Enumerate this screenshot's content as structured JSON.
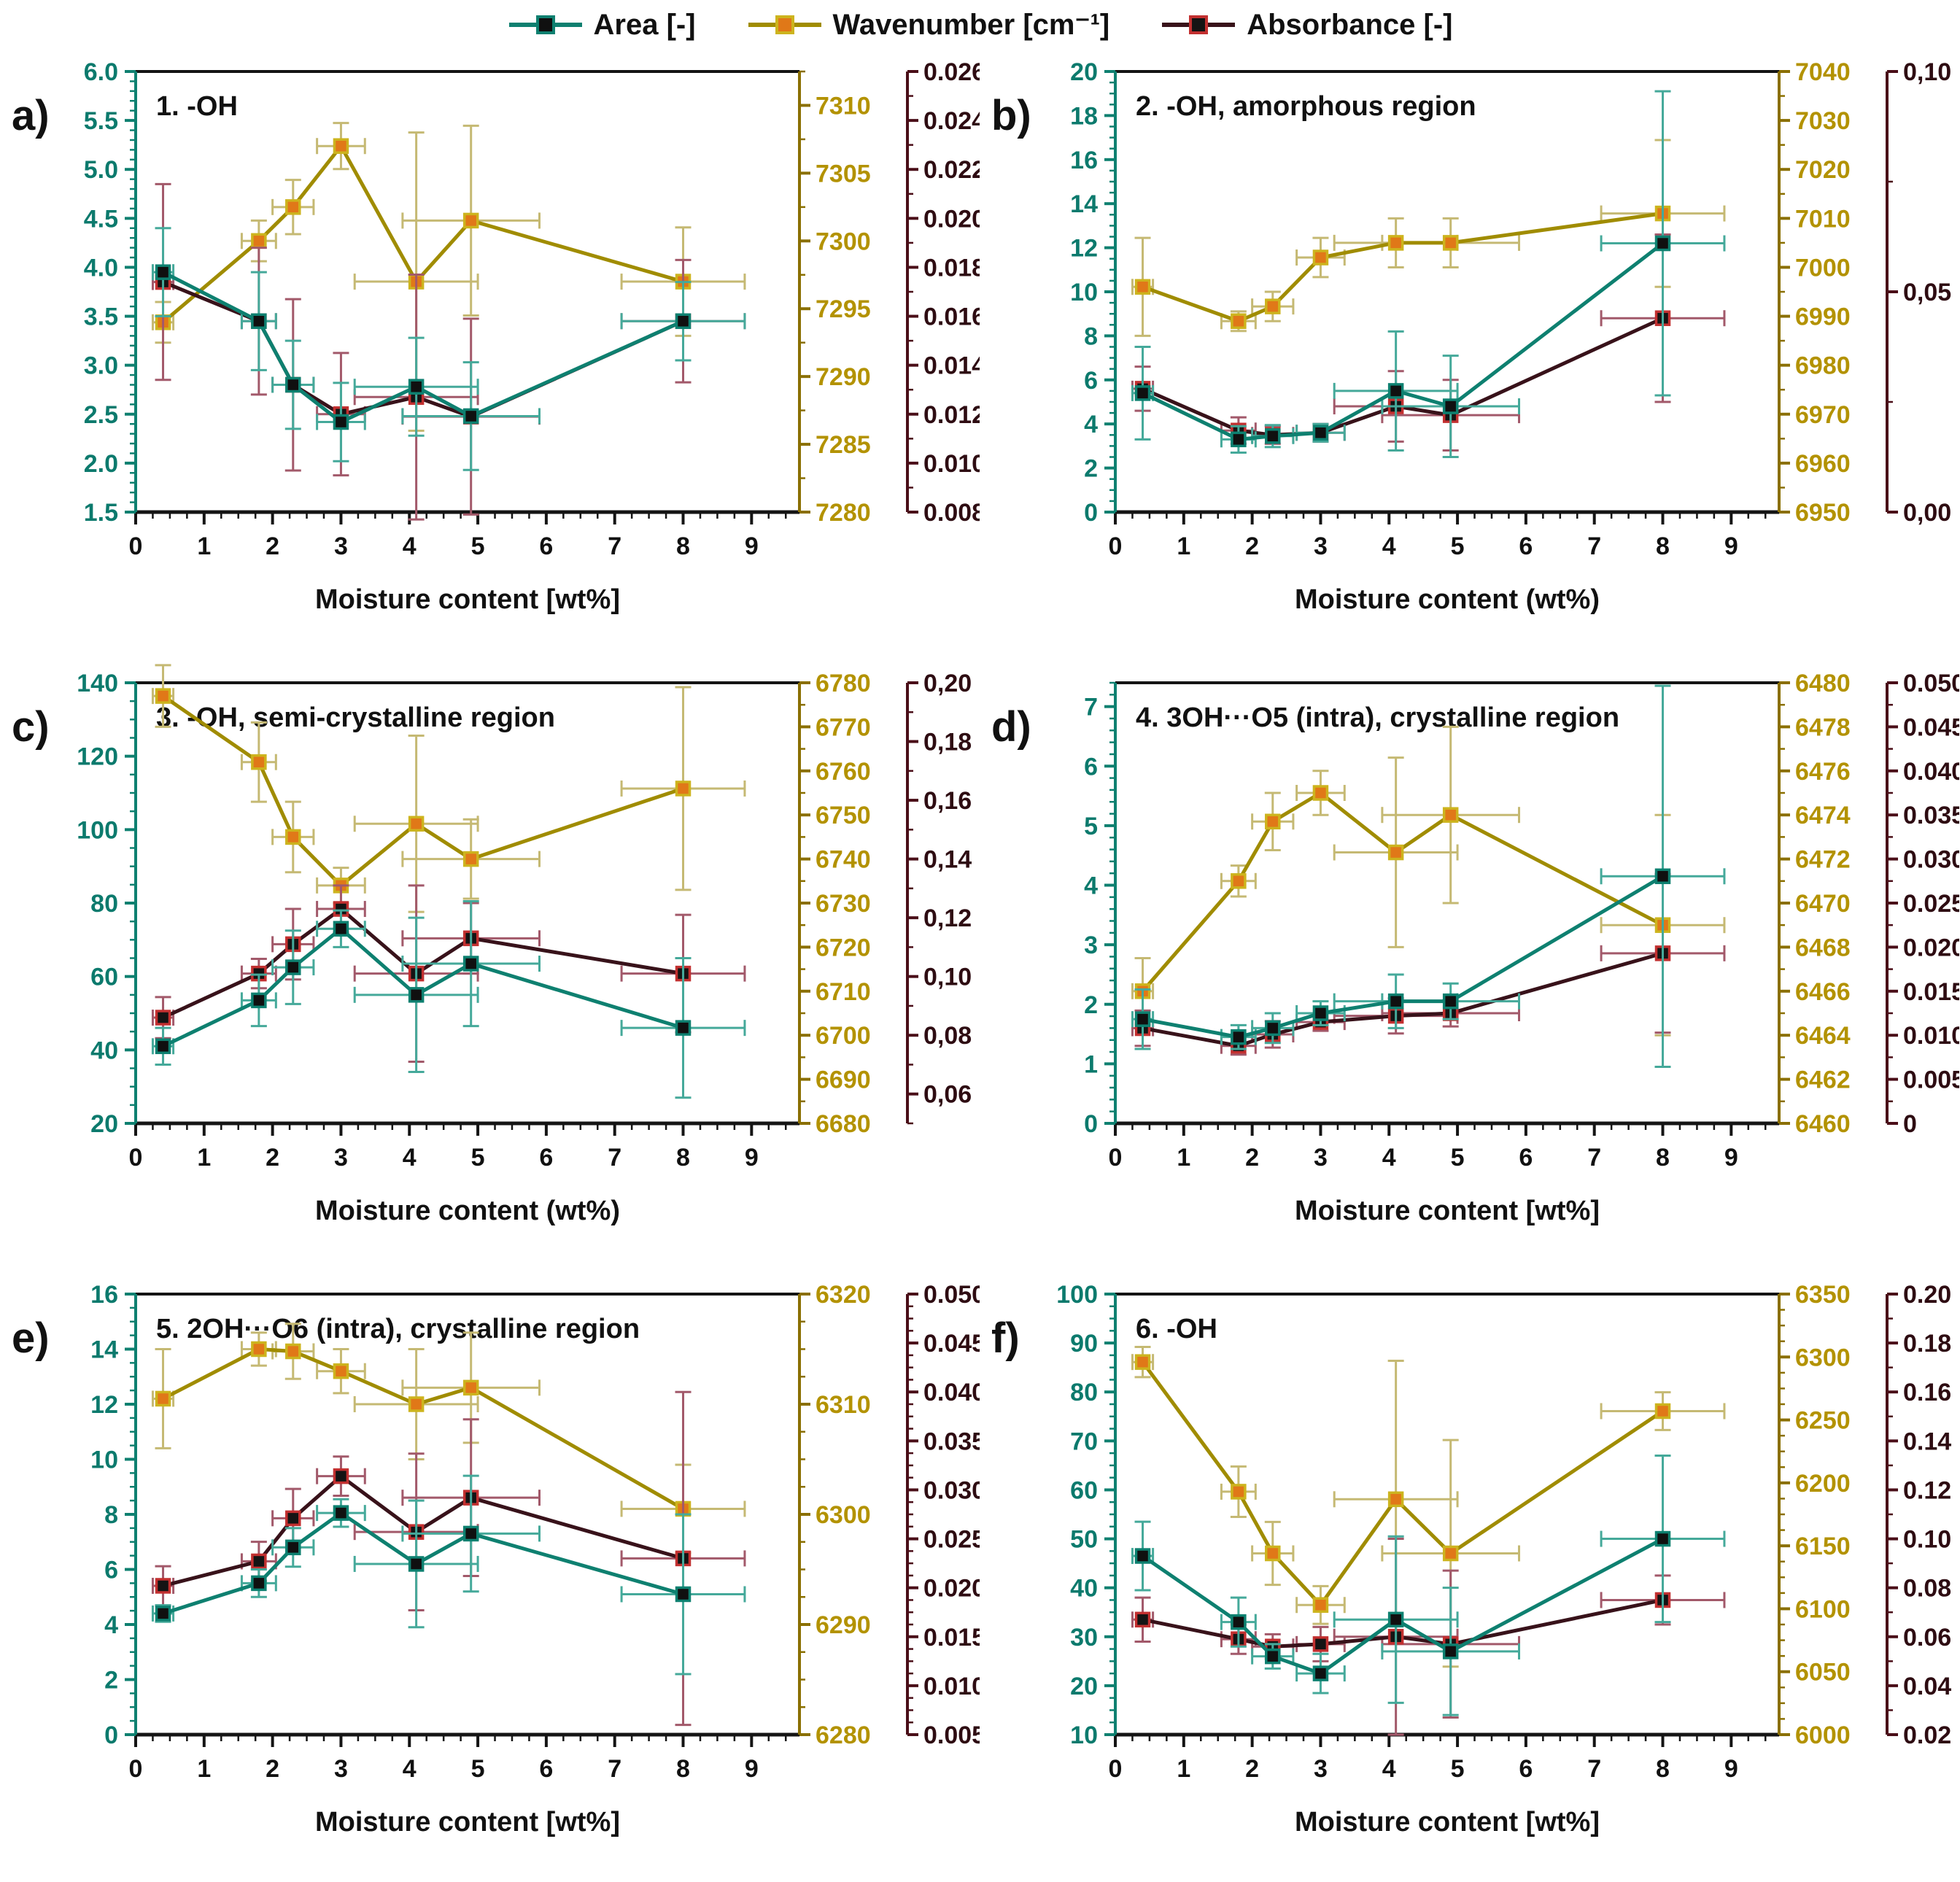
{
  "legend": {
    "items": [
      {
        "key": "area",
        "label": "Area [-]"
      },
      {
        "key": "wavenumber",
        "label": "Wavenumber [cm⁻¹]"
      },
      {
        "key": "absorbance",
        "label": "Absorbance [-]"
      }
    ]
  },
  "style": {
    "frame": "#141414",
    "area": {
      "line": "#0e8070",
      "axis": "#0e8070",
      "marker_fill": "#101010",
      "marker_edge": "#0e8070",
      "err": "#45a99a",
      "label": "#0c7a6d"
    },
    "wavenumber": {
      "line": "#a08c00",
      "axis": "#8a6f00",
      "marker_fill": "#e07818",
      "marker_edge": "#cdb41e",
      "err": "#c5b973",
      "label": "#b39200"
    },
    "absorbance": {
      "line": "#38121a",
      "axis": "#4a0e18",
      "marker_fill": "#141414",
      "marker_edge": "#c23030",
      "err": "#a2596a",
      "label": "#2e0c12"
    }
  },
  "x_tick_labels": [
    "0",
    "1",
    "2",
    "3",
    "4",
    "5",
    "6",
    "7",
    "8",
    "9"
  ],
  "chart_data": [
    {
      "id": "a",
      "panel": "a)",
      "type": "line",
      "title": "1. -OH",
      "xlabel": "Moisture content [wt%]",
      "x_range": [
        0,
        9.7
      ],
      "x": [
        0.4,
        1.8,
        2.3,
        3.0,
        4.1,
        4.9,
        8.0
      ],
      "xerr": [
        0.15,
        0.25,
        0.3,
        0.35,
        0.9,
        1.0,
        0.9
      ],
      "axes": {
        "area": {
          "range": [
            1.5,
            6.0
          ],
          "minor": 0.1,
          "tick_values": [
            1.5,
            2.0,
            2.5,
            3.0,
            3.5,
            4.0,
            4.5,
            5.0,
            5.5,
            6.0
          ],
          "tick_labels": [
            "1.5",
            "2.0",
            "2.5",
            "3.0",
            "3.5",
            "4.0",
            "4.5",
            "5.0",
            "5.5",
            "6.0"
          ]
        },
        "wavenumber": {
          "range": [
            7280,
            7312.5
          ],
          "minor": 2.5,
          "tick_values": [
            7280,
            7285,
            7290,
            7295,
            7300,
            7305,
            7310
          ],
          "tick_labels": [
            "7280",
            "7285",
            "7290",
            "7295",
            "7300",
            "7305",
            "7310"
          ]
        },
        "absorbance": {
          "range": [
            0.008,
            0.026
          ],
          "minor": 0.001,
          "tick_values": [
            0.008,
            0.01,
            0.012,
            0.014,
            0.016,
            0.018,
            0.02,
            0.022,
            0.024,
            0.026
          ],
          "tick_labels": [
            "0.008",
            "0.010",
            "0.012",
            "0.014",
            "0.016",
            "0.018",
            "0.020",
            "0.022",
            "0.024",
            "0.026"
          ]
        }
      },
      "series": {
        "area": {
          "values": [
            3.95,
            3.45,
            2.8,
            2.42,
            2.78,
            2.48,
            3.45
          ],
          "yerr": [
            0.45,
            0.5,
            0.45,
            0.4,
            0.5,
            0.55,
            0.4
          ]
        },
        "wavenumber": {
          "values": [
            7294,
            7300,
            7302.5,
            7307,
            7297,
            7301.5,
            7297
          ],
          "yerr": [
            1.5,
            1.5,
            2,
            1.7,
            11,
            7,
            4
          ]
        },
        "absorbance": {
          "values": [
            0.0174,
            0.0158,
            0.0132,
            0.012,
            0.0127,
            0.0119,
            0.0158
          ],
          "yerr": [
            0.004,
            0.003,
            0.0035,
            0.0025,
            0.005,
            0.004,
            0.0025
          ]
        }
      }
    },
    {
      "id": "b",
      "panel": "b)",
      "type": "line",
      "title": "2. -OH, amorphous region",
      "xlabel": "Moisture content (wt%)",
      "x_range": [
        0,
        9.7
      ],
      "x": [
        0.4,
        1.8,
        2.3,
        3.0,
        4.1,
        4.9,
        8.0
      ],
      "xerr": [
        0.15,
        0.25,
        0.3,
        0.35,
        0.9,
        1.0,
        0.9
      ],
      "axes": {
        "area": {
          "range": [
            0,
            20
          ],
          "minor": 0.5,
          "tick_values": [
            0,
            2,
            4,
            6,
            8,
            10,
            12,
            14,
            16,
            18,
            20
          ],
          "tick_labels": [
            "0",
            "2",
            "4",
            "6",
            "8",
            "10",
            "12",
            "14",
            "16",
            "18",
            "20"
          ]
        },
        "wavenumber": {
          "range": [
            6950,
            7040
          ],
          "minor": 5,
          "tick_values": [
            6950,
            6960,
            6970,
            6980,
            6990,
            7000,
            7010,
            7020,
            7030,
            7040
          ],
          "tick_labels": [
            "6950",
            "6960",
            "6970",
            "6980",
            "6990",
            "7000",
            "7010",
            "7020",
            "7030",
            "7040"
          ]
        },
        "absorbance": {
          "range": [
            0,
            0.1
          ],
          "minor": 0.025,
          "tick_values": [
            0,
            0.05,
            0.1
          ],
          "tick_labels": [
            "0,00",
            "0,05",
            "0,10"
          ]
        }
      },
      "series": {
        "area": {
          "values": [
            5.4,
            3.3,
            3.45,
            3.6,
            5.5,
            4.8,
            12.2
          ],
          "yerr": [
            2.1,
            0.6,
            0.5,
            0.4,
            2.7,
            2.3,
            6.9
          ]
        },
        "wavenumber": {
          "values": [
            6996,
            6989,
            6992,
            7002,
            7005,
            7005,
            7011
          ],
          "yerr": [
            10,
            2,
            3,
            4,
            5,
            5,
            15
          ]
        },
        "absorbance": {
          "values": [
            0.028,
            0.0185,
            0.0175,
            0.018,
            0.024,
            0.022,
            0.044
          ],
          "yerr": [
            0.005,
            0.003,
            0.002,
            0.002,
            0.008,
            0.008,
            0.019
          ]
        }
      }
    },
    {
      "id": "c",
      "panel": "c)",
      "type": "line",
      "title": "3. -OH, semi-crystalline region",
      "xlabel": "Moisture content (wt%)",
      "x_range": [
        0,
        9.7
      ],
      "x": [
        0.4,
        1.8,
        2.3,
        3.0,
        4.1,
        4.9,
        8.0
      ],
      "xerr": [
        0.15,
        0.25,
        0.3,
        0.35,
        0.9,
        1.0,
        0.9
      ],
      "axes": {
        "area": {
          "range": [
            20,
            140
          ],
          "minor": 5,
          "tick_values": [
            20,
            40,
            60,
            80,
            100,
            120,
            140
          ],
          "tick_labels": [
            "20",
            "40",
            "60",
            "80",
            "100",
            "120",
            "140"
          ]
        },
        "wavenumber": {
          "range": [
            6680,
            6780
          ],
          "minor": 5,
          "tick_values": [
            6680,
            6690,
            6700,
            6710,
            6720,
            6730,
            6740,
            6750,
            6760,
            6770,
            6780
          ],
          "tick_labels": [
            "6680",
            "6690",
            "6700",
            "6710",
            "6720",
            "6730",
            "6740",
            "6750",
            "6760",
            "6770",
            "6780"
          ]
        },
        "absorbance": {
          "range": [
            0.05,
            0.2
          ],
          "minor": 0.01,
          "tick_values": [
            0.06,
            0.08,
            0.1,
            0.12,
            0.14,
            0.16,
            0.18,
            0.2
          ],
          "tick_labels": [
            "0,06",
            "0,08",
            "0,10",
            "0,12",
            "0,14",
            "0,16",
            "0,18",
            "0,20"
          ]
        }
      },
      "series": {
        "area": {
          "values": [
            41,
            53.5,
            62.5,
            73,
            55,
            63.5,
            46
          ],
          "yerr": [
            5,
            7,
            10,
            5,
            21,
            17,
            19
          ]
        },
        "wavenumber": {
          "values": [
            6777,
            6762,
            6745,
            6734,
            6748,
            6740,
            6756
          ],
          "yerr": [
            7,
            9,
            8,
            4,
            20,
            9,
            23
          ]
        },
        "absorbance": {
          "values": [
            0.086,
            0.101,
            0.111,
            0.123,
            0.101,
            0.113,
            0.101
          ],
          "yerr": [
            0.007,
            0.005,
            0.012,
            0.008,
            0.03,
            0.012,
            0.02
          ]
        }
      }
    },
    {
      "id": "d",
      "panel": "d)",
      "type": "line",
      "title": "4. 3OH···O5 (intra), crystalline region",
      "xlabel": "Moisture content [wt%]",
      "x_range": [
        0,
        9.7
      ],
      "x": [
        0.4,
        1.8,
        2.3,
        3.0,
        4.1,
        4.9,
        8.0
      ],
      "xerr": [
        0.15,
        0.25,
        0.3,
        0.35,
        0.9,
        1.0,
        0.9
      ],
      "axes": {
        "area": {
          "range": [
            0,
            7.4
          ],
          "minor": 0.2,
          "tick_values": [
            0,
            1,
            2,
            3,
            4,
            5,
            6,
            7
          ],
          "tick_labels": [
            "0",
            "1",
            "2",
            "3",
            "4",
            "5",
            "6",
            "7"
          ]
        },
        "wavenumber": {
          "range": [
            6460,
            6480
          ],
          "minor": 1,
          "tick_values": [
            6460,
            6462,
            6464,
            6466,
            6468,
            6470,
            6472,
            6474,
            6476,
            6478,
            6480
          ],
          "tick_labels": [
            "6460",
            "6462",
            "6464",
            "6466",
            "6468",
            "6470",
            "6472",
            "6474",
            "6476",
            "6478",
            "6480"
          ]
        },
        "absorbance": {
          "range": [
            0,
            0.05
          ],
          "minor": 0.0025,
          "tick_values": [
            0,
            0.005,
            0.01,
            0.015,
            0.02,
            0.025,
            0.03,
            0.035,
            0.04,
            0.045,
            0.05
          ],
          "tick_labels": [
            "0",
            "0.005",
            "0.010",
            "0.015",
            "0.020",
            "0.025",
            "0.030",
            "0.035",
            "0.040",
            "0.045",
            "0.050"
          ]
        }
      },
      "series": {
        "area": {
          "values": [
            1.75,
            1.45,
            1.6,
            1.85,
            2.05,
            2.05,
            4.15
          ],
          "yerr": [
            0.5,
            0.2,
            0.25,
            0.2,
            0.45,
            0.3,
            3.2
          ]
        },
        "wavenumber": {
          "values": [
            6466,
            6471,
            6473.7,
            6475,
            6472.3,
            6474,
            6469
          ],
          "yerr": [
            1.5,
            0.7,
            1.3,
            1,
            4.3,
            4,
            5
          ]
        },
        "absorbance": {
          "values": [
            0.0108,
            0.0088,
            0.0101,
            0.0115,
            0.0122,
            0.0125,
            0.0193
          ],
          "yerr": [
            0.002,
            0.001,
            0.0015,
            0.001,
            0.002,
            0.0015,
            0.009
          ]
        }
      }
    },
    {
      "id": "e",
      "panel": "e)",
      "type": "line",
      "title": "5. 2OH···O6 (intra), crystalline region",
      "xlabel": "Moisture content [wt%]",
      "x_range": [
        0,
        9.7
      ],
      "x": [
        0.4,
        1.8,
        2.3,
        3.0,
        4.1,
        4.9,
        8.0
      ],
      "xerr": [
        0.15,
        0.25,
        0.3,
        0.35,
        0.9,
        1.0,
        0.9
      ],
      "axes": {
        "area": {
          "range": [
            0,
            16
          ],
          "minor": 0.5,
          "tick_values": [
            0,
            2,
            4,
            6,
            8,
            10,
            12,
            14,
            16
          ],
          "tick_labels": [
            "0",
            "2",
            "4",
            "6",
            "8",
            "10",
            "12",
            "14",
            "16"
          ]
        },
        "wavenumber": {
          "range": [
            6280,
            6320
          ],
          "minor": 2.5,
          "tick_values": [
            6280,
            6290,
            6300,
            6310,
            6320
          ],
          "tick_labels": [
            "6280",
            "6290",
            "6300",
            "6310",
            "6320"
          ]
        },
        "absorbance": {
          "range": [
            0.005,
            0.05
          ],
          "minor": 0.00125,
          "tick_values": [
            0.005,
            0.01,
            0.015,
            0.02,
            0.025,
            0.03,
            0.035,
            0.04,
            0.045,
            0.05
          ],
          "tick_labels": [
            "0.005",
            "0.010",
            "0.015",
            "0.020",
            "0.025",
            "0.030",
            "0.035",
            "0.040",
            "0.045",
            "0.050"
          ]
        }
      },
      "series": {
        "area": {
          "values": [
            4.4,
            5.5,
            6.8,
            8.05,
            6.2,
            7.3,
            5.1
          ],
          "yerr": [
            0.3,
            0.5,
            0.7,
            0.5,
            2.3,
            2.1,
            2.9
          ]
        },
        "wavenumber": {
          "values": [
            6310.5,
            6315,
            6314.8,
            6313,
            6310,
            6311.5,
            6300.5
          ],
          "yerr": [
            4.5,
            1.5,
            2.5,
            2,
            5,
            5,
            4
          ]
        },
        "absorbance": {
          "values": [
            0.0202,
            0.0227,
            0.0271,
            0.0314,
            0.0257,
            0.0292,
            0.023
          ],
          "yerr": [
            0.002,
            0.002,
            0.003,
            0.002,
            0.008,
            0.008,
            0.017
          ]
        }
      }
    },
    {
      "id": "f",
      "panel": "f)",
      "type": "line",
      "title": "6. -OH",
      "xlabel": "Moisture content [wt%]",
      "x_range": [
        0,
        9.7
      ],
      "x": [
        0.4,
        1.8,
        2.3,
        3.0,
        4.1,
        4.9,
        8.0
      ],
      "xerr": [
        0.15,
        0.25,
        0.3,
        0.35,
        0.9,
        1.0,
        0.9
      ],
      "axes": {
        "area": {
          "range": [
            10,
            100
          ],
          "minor": 2.5,
          "tick_values": [
            10,
            20,
            30,
            40,
            50,
            60,
            70,
            80,
            90,
            100
          ],
          "tick_labels": [
            "10",
            "20",
            "30",
            "40",
            "50",
            "60",
            "70",
            "80",
            "90",
            "100"
          ]
        },
        "wavenumber": {
          "range": [
            6000,
            6350
          ],
          "minor": 12.5,
          "tick_values": [
            6000,
            6050,
            6100,
            6150,
            6200,
            6250,
            6300,
            6350
          ],
          "tick_labels": [
            "6000",
            "6050",
            "6100",
            "6150",
            "6200",
            "6250",
            "6300",
            "6350"
          ]
        },
        "absorbance": {
          "range": [
            0.02,
            0.2
          ],
          "minor": 0.01,
          "tick_values": [
            0.02,
            0.04,
            0.06,
            0.08,
            0.1,
            0.12,
            0.14,
            0.16,
            0.18,
            0.2
          ],
          "tick_labels": [
            "0.02",
            "0.04",
            "0.06",
            "0.08",
            "0.10",
            "0.12",
            "0.14",
            "0.16",
            "0.18",
            "0.20"
          ]
        }
      },
      "series": {
        "area": {
          "values": [
            46.5,
            33,
            26,
            22.5,
            33.5,
            27,
            50
          ],
          "yerr": [
            7,
            5,
            2.5,
            4,
            17,
            13,
            17
          ]
        },
        "wavenumber": {
          "values": [
            6296,
            6193,
            6144,
            6103,
            6187,
            6144,
            6257
          ],
          "yerr": [
            12,
            20,
            25,
            15,
            110,
            90,
            15
          ]
        },
        "absorbance": {
          "values": [
            0.067,
            0.059,
            0.056,
            0.057,
            0.06,
            0.057,
            0.075
          ],
          "yerr": [
            0.009,
            0.006,
            0.005,
            0.007,
            0.04,
            0.03,
            0.01
          ]
        }
      }
    }
  ]
}
